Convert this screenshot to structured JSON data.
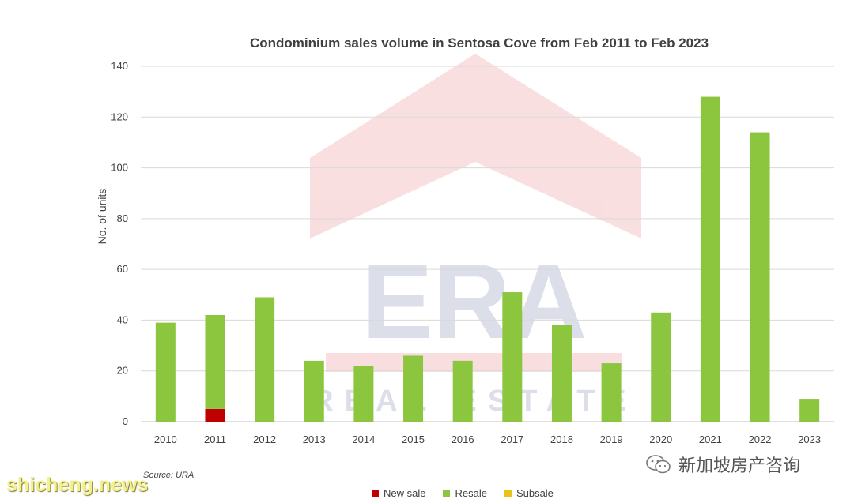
{
  "chart_data": {
    "type": "bar",
    "stacked": true,
    "title": "Condominium sales volume in Sentosa Cove from Feb 2011 to Feb 2023",
    "xlabel": "",
    "ylabel": "No. of units",
    "ylim": [
      0,
      140
    ],
    "yticks": [
      0,
      20,
      40,
      60,
      80,
      100,
      120,
      140
    ],
    "grid": true,
    "legend_position": "bottom",
    "categories": [
      "2010",
      "2011",
      "2012",
      "2013",
      "2014",
      "2015",
      "2016",
      "2017",
      "2018",
      "2019",
      "2020",
      "2021",
      "2022",
      "2023"
    ],
    "series": [
      {
        "name": "New sale",
        "color": "#c00000",
        "values": [
          0,
          5,
          0,
          0,
          0,
          0,
          0,
          0,
          0,
          0,
          0,
          0,
          0,
          0
        ]
      },
      {
        "name": "Resale",
        "color": "#8cc63e",
        "values": [
          39,
          37,
          49,
          24,
          22,
          26,
          24,
          51,
          38,
          23,
          43,
          128,
          114,
          9
        ]
      },
      {
        "name": "Subsale",
        "color": "#e8c31a",
        "values": [
          0,
          0,
          0,
          0,
          0,
          0,
          0,
          0,
          0,
          0,
          0,
          0,
          0,
          0
        ]
      }
    ],
    "source": "Source: URA"
  },
  "watermarks": {
    "brand_letters": "ERA",
    "brand_sub": "REAL ESTATE",
    "site": "shicheng.news",
    "account": "新加坡房产咨询",
    "account_icon": "wechat-icon"
  }
}
